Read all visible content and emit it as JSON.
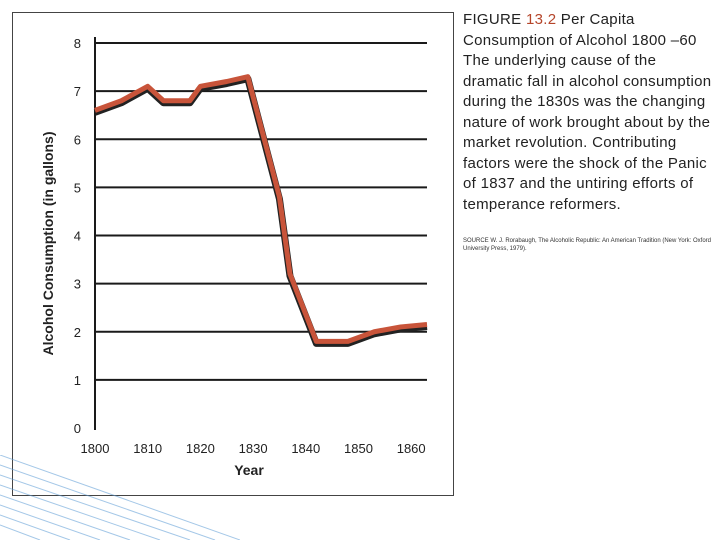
{
  "caption": {
    "label": "FIGURE ",
    "number": "13.2",
    "title": " Per Capita Consumption of Alcohol 1800 –60",
    "body": " The underlying cause of the dramatic fall in alcohol consumption during the 1830s was the changing nature of work brought about by the market revolution. Contributing factors were the shock of the Panic of 1837 and the untiring efforts of temperance reformers."
  },
  "source": "SOURCE W. J. Rorabaugh, The Alcoholic Republic: An American Tradition (New York: Oxford University Press, 1979).",
  "chart_data": {
    "type": "line",
    "title": "",
    "xlabel": "Year",
    "ylabel": "Alcohol Consumption (in gallons)",
    "xlim": [
      1800,
      1863
    ],
    "ylim": [
      0,
      8
    ],
    "xticks": [
      "1800",
      "1810",
      "1820",
      "1830",
      "1840",
      "1850",
      "1860"
    ],
    "yticks": [
      "0",
      "1",
      "2",
      "3",
      "4",
      "5",
      "6",
      "7",
      "8"
    ],
    "grid": "horizontal",
    "series": [
      {
        "name": "Per capita consumption",
        "color": "#c8543a",
        "outline": "#222222",
        "x": [
          1800,
          1805,
          1810,
          1813,
          1818,
          1820,
          1825,
          1829,
          1835,
          1837,
          1842,
          1848,
          1853,
          1858,
          1863
        ],
        "values": [
          6.6,
          6.8,
          7.1,
          6.8,
          6.8,
          7.1,
          7.2,
          7.3,
          4.8,
          3.2,
          1.8,
          1.8,
          2.0,
          2.1,
          2.15
        ]
      }
    ]
  }
}
